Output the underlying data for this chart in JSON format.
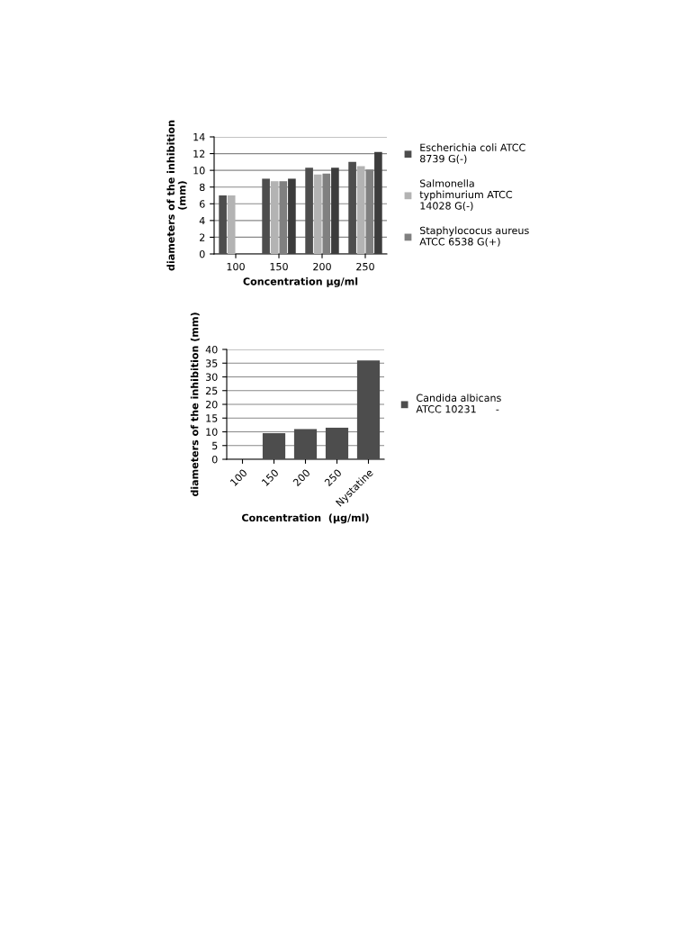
{
  "chart_data": [
    {
      "type": "bar",
      "xlabel": "Concentration µg/ml",
      "ylabel": "diameters of the inhibition\n(mm)",
      "categories": [
        "100",
        "150",
        "200",
        "250"
      ],
      "series": [
        {
          "name": "Escherichia coli ATCC\n8739 G(-)",
          "color": "#4d4d4d",
          "values": [
            7.0,
            9.0,
            10.3,
            11.0
          ]
        },
        {
          "name": "Salmonella\ntyphimurium ATCC\n14028 G(-)",
          "color": "#b3b3b3",
          "values": [
            7.0,
            8.7,
            9.5,
            10.5
          ]
        },
        {
          "name": "Staphylococus aureus\nATCC 6538 G(+)",
          "color": "#808080",
          "values": [
            0,
            8.7,
            9.6,
            10.1
          ]
        },
        {
          "color": "#3c3c3c",
          "values": [
            0,
            9.0,
            10.3,
            12.2
          ]
        }
      ],
      "ylim": [
        0,
        14
      ],
      "yticks": [
        0,
        2,
        4,
        6,
        8,
        10,
        12,
        14
      ],
      "grid": "y",
      "legend": "right"
    },
    {
      "type": "bar",
      "xlabel": "Concentration  (µg/ml)",
      "ylabel": "diameters of the inhibition (mm)",
      "categories": [
        "100",
        "150",
        "200",
        "250",
        "Nystatine"
      ],
      "series": [
        {
          "name": "Candida albicans\nATCC 10231      -",
          "color": "#4d4d4d",
          "values": [
            0,
            9.5,
            11.0,
            11.5,
            36.0
          ]
        }
      ],
      "ylim": [
        0,
        40
      ],
      "yticks": [
        0,
        5,
        10,
        15,
        20,
        25,
        30,
        35,
        40
      ],
      "grid": "y",
      "legend": "right"
    }
  ]
}
